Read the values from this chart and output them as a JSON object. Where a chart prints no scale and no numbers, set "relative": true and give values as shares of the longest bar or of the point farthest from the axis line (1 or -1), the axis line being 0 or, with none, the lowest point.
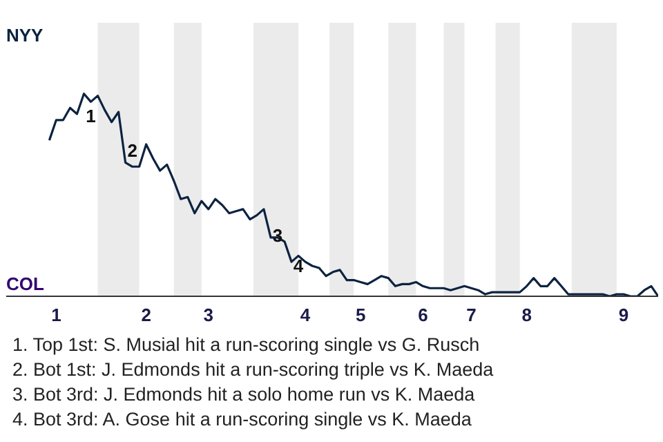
{
  "chart_data": {
    "type": "line",
    "relative": true,
    "categories": [
      null,
      "1",
      null,
      null,
      null,
      null,
      null,
      null,
      null,
      null,
      null,
      null,
      null,
      null,
      "2",
      null,
      null,
      null,
      null,
      null,
      null,
      null,
      null,
      "3",
      null,
      null,
      null,
      null,
      null,
      null,
      null,
      null,
      null,
      null,
      null,
      null,
      null,
      "4",
      null,
      null,
      null,
      null,
      null,
      null,
      null,
      "5",
      null,
      null,
      null,
      null,
      null,
      null,
      null,
      null,
      "6",
      null,
      null,
      null,
      null,
      null,
      null,
      "7",
      null,
      null,
      null,
      null,
      null,
      null,
      null,
      "8",
      null,
      null,
      null,
      null,
      null,
      null,
      null,
      null,
      null,
      null,
      null,
      null,
      null,
      "9",
      null,
      null,
      null,
      null,
      null
    ],
    "series": [
      {
        "color": "#0c2340",
        "values": [
          0.77,
          0.87,
          0.87,
          0.93,
          0.9,
          1,
          0.96,
          0.99,
          0.92,
          0.86,
          0.91,
          0.66,
          0.64,
          0.64,
          0.75,
          0.68,
          0.62,
          0.65,
          0.57,
          0.48,
          0.49,
          0.41,
          0.47,
          0.43,
          0.48,
          0.45,
          0.41,
          0.42,
          0.43,
          0.38,
          0.4,
          0.43,
          0.29,
          0.29,
          0.27,
          0.17,
          0.2,
          0.17,
          0.15,
          0.14,
          0.1,
          0.12,
          0.13,
          0.08,
          0.08,
          0.07,
          0.06,
          0.08,
          0.1,
          0.09,
          0.05,
          0.06,
          0.06,
          0.07,
          0.05,
          0.04,
          0.04,
          0.04,
          0.03,
          0.04,
          0.05,
          0.04,
          0.03,
          0.01,
          0.02,
          0.02,
          0.02,
          0.02,
          0.02,
          0.05,
          0.09,
          0.05,
          0.05,
          0.09,
          0.05,
          0.01,
          0.01,
          0.01,
          0.01,
          0.01,
          0.01,
          0,
          0.01,
          0.01,
          0,
          0,
          0.03,
          0.05,
          0
        ]
      }
    ],
    "annotations": [
      "NYY",
      "COL",
      "1",
      "2",
      "3",
      "4",
      "1. Top 1st: S. Musial hit a run-scoring single vs G. Rusch",
      "2. Bot 1st: J. Edmonds hit a run-scoring triple vs K. Maeda",
      "3. Bot 3rd: J. Edmonds hit a solo home run vs K. Maeda",
      "4. Bot 3rd: A. Gose hit a run-scoring single vs K. Maeda"
    ]
  }
}
